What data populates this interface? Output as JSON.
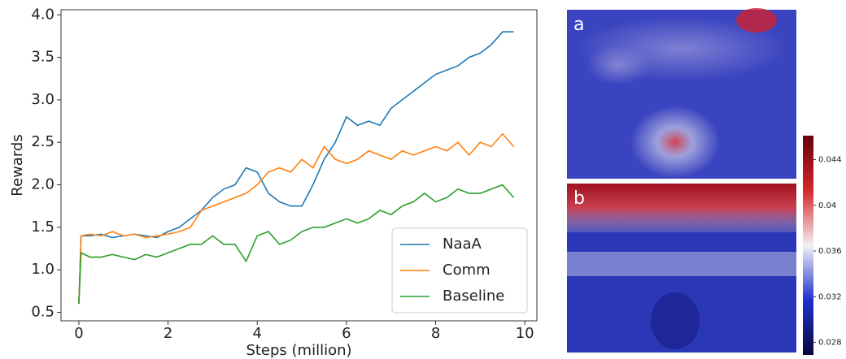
{
  "chart_data": {
    "type": "line",
    "x_label": "Steps (million)",
    "y_label": "Rewards",
    "x": [
      0,
      0.05,
      0.25,
      0.5,
      0.75,
      1,
      1.25,
      1.5,
      1.75,
      2,
      2.25,
      2.5,
      2.75,
      3,
      3.25,
      3.5,
      3.75,
      4,
      4.25,
      4.5,
      4.75,
      5,
      5.25,
      5.5,
      5.75,
      6,
      6.25,
      6.5,
      6.75,
      7,
      7.25,
      7.5,
      7.75,
      8,
      8.25,
      8.5,
      8.75,
      9,
      9.25,
      9.5,
      9.75
    ],
    "series": [
      {
        "name": "NaaA",
        "color": "#1f77b4",
        "values": [
          0.6,
          1.4,
          1.4,
          1.42,
          1.38,
          1.4,
          1.42,
          1.4,
          1.38,
          1.45,
          1.5,
          1.6,
          1.7,
          1.85,
          1.95,
          2.0,
          2.2,
          2.15,
          1.9,
          1.8,
          1.75,
          1.75,
          2.0,
          2.3,
          2.5,
          2.8,
          2.7,
          2.75,
          2.7,
          2.9,
          3.0,
          3.1,
          3.2,
          3.3,
          3.35,
          3.4,
          3.5,
          3.55,
          3.65,
          3.8,
          3.8
        ]
      },
      {
        "name": "Comm",
        "color": "#ff7f0e",
        "values": [
          0.6,
          1.4,
          1.42,
          1.4,
          1.45,
          1.4,
          1.42,
          1.38,
          1.4,
          1.42,
          1.45,
          1.5,
          1.7,
          1.75,
          1.8,
          1.85,
          1.9,
          2.0,
          2.15,
          2.2,
          2.15,
          2.3,
          2.2,
          2.45,
          2.3,
          2.25,
          2.3,
          2.4,
          2.35,
          2.3,
          2.4,
          2.35,
          2.4,
          2.45,
          2.4,
          2.5,
          2.35,
          2.5,
          2.45,
          2.6,
          2.45
        ]
      },
      {
        "name": "Baseline",
        "color": "#2ca02c",
        "values": [
          0.6,
          1.2,
          1.15,
          1.15,
          1.18,
          1.15,
          1.12,
          1.18,
          1.15,
          1.2,
          1.25,
          1.3,
          1.3,
          1.4,
          1.3,
          1.3,
          1.1,
          1.4,
          1.45,
          1.3,
          1.35,
          1.45,
          1.5,
          1.5,
          1.55,
          1.6,
          1.55,
          1.6,
          1.7,
          1.65,
          1.75,
          1.8,
          1.9,
          1.8,
          1.85,
          1.95,
          1.9,
          1.9,
          1.95,
          2.0,
          1.85
        ]
      }
    ],
    "xlim": [
      -0.4,
      10.27
    ],
    "ylim": [
      0.4,
      4.06
    ],
    "xticks": [
      0,
      2,
      4,
      6,
      8,
      10
    ],
    "yticks": [
      0.5,
      {
        "value": 1,
        "label": "1.0"
      },
      1.5,
      {
        "value": 2,
        "label": "2.0"
      },
      2.5,
      {
        "value": 3,
        "label": "3.0"
      },
      3.5,
      {
        "value": 4,
        "label": "4.0"
      }
    ],
    "legend": "lower right"
  },
  "heatmap_panels": {
    "labels": [
      "a",
      "b"
    ],
    "colorbar": {
      "lim": [
        0.0269,
        0.0461
      ],
      "ticks": [
        0.028,
        0.032,
        0.036,
        0.04,
        0.044
      ]
    }
  }
}
